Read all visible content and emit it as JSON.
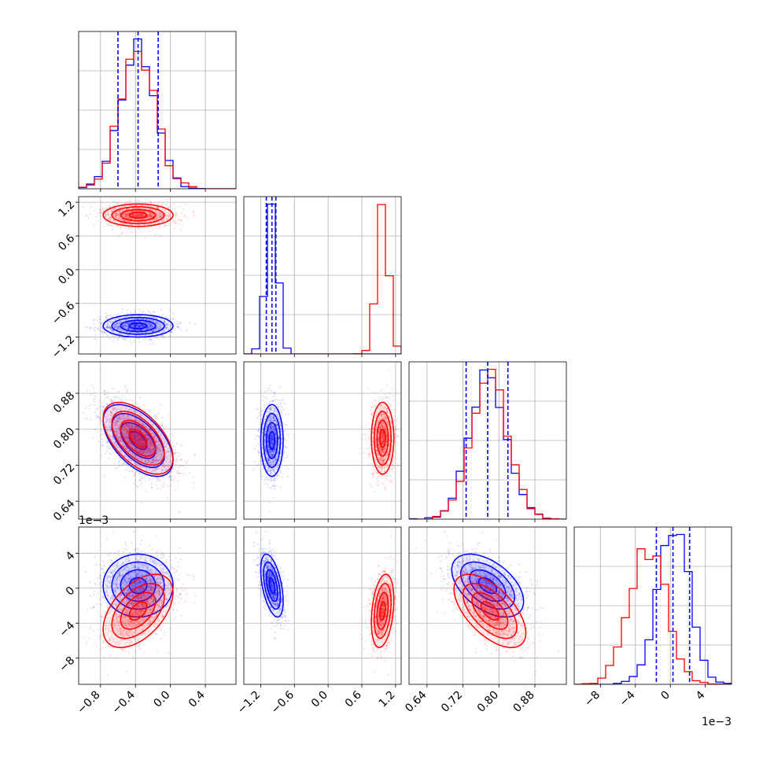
{
  "colors": {
    "series_a": "#0000ff",
    "series_b": "#ff0000",
    "grid": "#b0b0b0",
    "frame": "#000000"
  },
  "chart_data": {
    "type": "scatter",
    "layout": "corner",
    "grid": true,
    "parameters": [
      {
        "range": [
          -1.05,
          0.75
        ],
        "ticks": [
          -0.8,
          -0.4,
          0.0,
          0.4
        ],
        "tick_labels": [
          "−0.8",
          "−0.4",
          "0.0",
          "0.4"
        ],
        "offset": ""
      },
      {
        "range": [
          -1.5,
          1.3
        ],
        "ticks": [
          -1.2,
          -0.6,
          0.0,
          0.6,
          1.2
        ],
        "tick_labels": [
          "−1.2",
          "−0.6",
          "0.0",
          "0.6",
          "1.2"
        ],
        "offset": ""
      },
      {
        "range": [
          0.6,
          0.95
        ],
        "ticks": [
          0.64,
          0.72,
          0.8,
          0.88
        ],
        "tick_labels": [
          "0.64",
          "0.72",
          "0.80",
          "0.88"
        ],
        "offset": ""
      },
      {
        "range": [
          -11,
          7
        ],
        "ticks": [
          -8,
          -4,
          0,
          4
        ],
        "tick_labels": [
          "−8",
          "−4",
          "0",
          "4"
        ],
        "offset": "1e−3"
      }
    ],
    "series": [
      {
        "color": "#0000ff",
        "mean": [
          -0.37,
          -1.0,
          0.775,
          0.3
        ],
        "std": [
          0.2,
          0.1,
          0.04,
          1.8
        ],
        "corr": {
          "0-2": -0.55,
          "1-3": -0.5,
          "2-3": -0.5
        },
        "quantiles": [
          [
            -0.6,
            -0.37,
            -0.14
          ],
          [
            -1.1,
            -1.0,
            -0.93
          ],
          [
            0.727,
            0.775,
            0.82
          ],
          [
            -1.6,
            0.3,
            2.2
          ]
        ]
      },
      {
        "color": "#ff0000",
        "mean": [
          -0.37,
          0.97,
          0.78,
          -2.6
        ],
        "std": [
          0.2,
          0.1,
          0.04,
          2.1
        ],
        "corr": {
          "0-2": -0.55,
          "0-3": 0.5,
          "1-3": 0.3,
          "2-3": -0.6
        },
        "quantiles": []
      }
    ]
  }
}
